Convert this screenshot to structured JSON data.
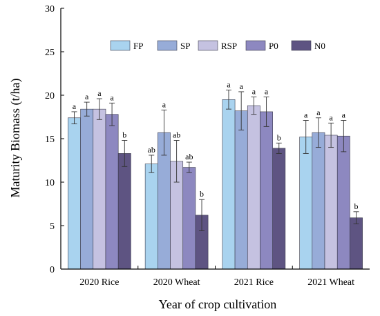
{
  "chart_data": {
    "type": "bar",
    "title": "",
    "xlabel": "Year of crop cultivation",
    "ylabel": "Maturity Biomass (t/ha)",
    "ylim": [
      0,
      30
    ],
    "yticks": [
      0,
      5,
      10,
      15,
      20,
      25,
      30
    ],
    "grid": false,
    "legend_position": "top-right",
    "categories": [
      "2020 Rice",
      "2020 Wheat",
      "2021 Rice",
      "2021 Wheat"
    ],
    "series": [
      {
        "name": "FP",
        "color": "#a9d3ef",
        "values": [
          17.4,
          12.1,
          19.5,
          15.2
        ],
        "errors": [
          0.7,
          1.0,
          1.1,
          1.9
        ],
        "letters": [
          "a",
          "ab",
          "a",
          "a"
        ]
      },
      {
        "name": "SP",
        "color": "#97acd8",
        "values": [
          18.4,
          15.7,
          18.2,
          15.7
        ],
        "errors": [
          0.8,
          2.6,
          2.2,
          1.7
        ],
        "letters": [
          "a",
          "a",
          "a",
          "a"
        ]
      },
      {
        "name": "RSP",
        "color": "#c5c2e1",
        "values": [
          18.4,
          12.4,
          18.8,
          15.4
        ],
        "errors": [
          1.2,
          2.4,
          1.0,
          1.4
        ],
        "letters": [
          "a",
          "ab",
          "a",
          "a"
        ]
      },
      {
        "name": "P0",
        "color": "#8d88c0",
        "values": [
          17.8,
          11.7,
          18.1,
          15.3
        ],
        "errors": [
          1.3,
          0.6,
          1.7,
          1.8
        ],
        "letters": [
          "a",
          "ab",
          "a",
          "a"
        ]
      },
      {
        "name": "N0",
        "color": "#5e5482",
        "values": [
          13.3,
          6.2,
          13.9,
          5.9
        ],
        "errors": [
          1.5,
          1.8,
          0.6,
          0.7
        ],
        "letters": [
          "b",
          "b",
          "b",
          "b"
        ]
      }
    ]
  }
}
